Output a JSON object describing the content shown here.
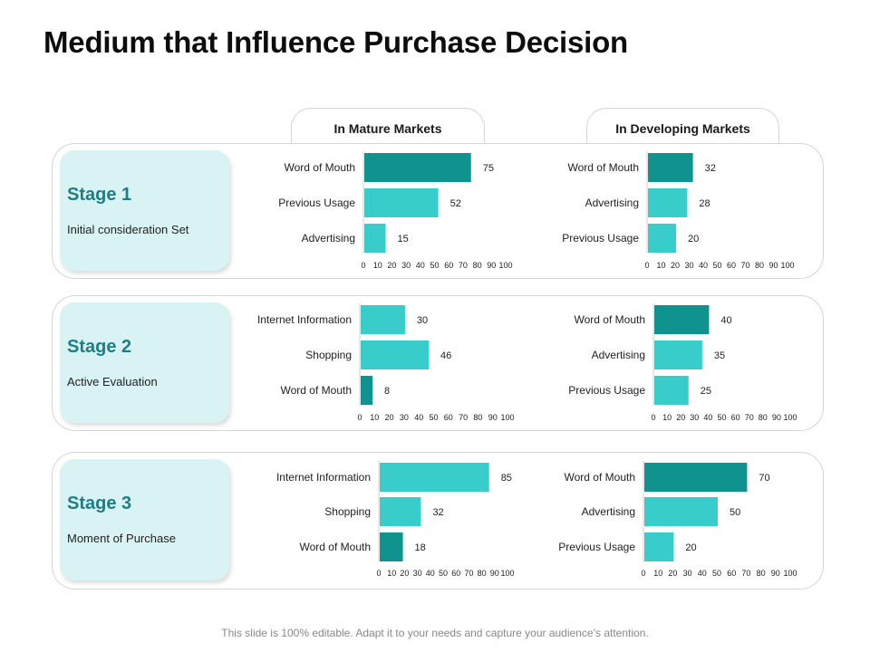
{
  "title": "Medium that Influence Purchase Decision",
  "markets": [
    "In Mature Markets",
    "In Developing Markets"
  ],
  "stages": [
    {
      "title": "Stage 1",
      "subtitle": "Initial consideration Set"
    },
    {
      "title": "Stage 2",
      "subtitle": "Active Evaluation"
    },
    {
      "title": "Stage 3",
      "subtitle": "Moment of Purchase"
    }
  ],
  "footer": "This slide is 100% editable. Adapt it to your needs and capture your audience’s attention.",
  "colors": {
    "dark": "#10928f",
    "light": "#38cdcb",
    "stage_text": "#1a7f87"
  },
  "chart_data": [
    {
      "type": "bar",
      "orientation": "horizontal",
      "stage": "Stage 1",
      "market": "In Mature Markets",
      "categories": [
        "Word of Mouth",
        "Previous Usage",
        "Advertising"
      ],
      "values": [
        75,
        52,
        15
      ],
      "highlight": "Word of Mouth",
      "xlim": [
        0,
        100
      ],
      "xticks": [
        "0",
        "10",
        "20",
        "30",
        "40",
        "50",
        "60",
        "70",
        "80",
        "90",
        "100"
      ]
    },
    {
      "type": "bar",
      "orientation": "horizontal",
      "stage": "Stage 1",
      "market": "In Developing Markets",
      "categories": [
        "Word of Mouth",
        "Advertising",
        "Previous Usage"
      ],
      "values": [
        32,
        28,
        20
      ],
      "highlight": "Word of Mouth",
      "xlim": [
        0,
        100
      ],
      "xticks": [
        "0",
        "10",
        "20",
        "30",
        "40",
        "50",
        "60",
        "70",
        "80",
        "90",
        "100"
      ]
    },
    {
      "type": "bar",
      "orientation": "horizontal",
      "stage": "Stage 2",
      "market": "In Mature Markets",
      "categories": [
        "Internet Information",
        "Shopping",
        "Word of Mouth"
      ],
      "values": [
        30,
        46,
        8
      ],
      "highlight": "Word of Mouth",
      "xlim": [
        0,
        100
      ],
      "xticks": [
        "0",
        "10",
        "20",
        "30",
        "40",
        "50",
        "60",
        "70",
        "80",
        "90",
        "100"
      ]
    },
    {
      "type": "bar",
      "orientation": "horizontal",
      "stage": "Stage 2",
      "market": "In Developing Markets",
      "categories": [
        "Word of Mouth",
        "Advertising",
        "Previous Usage"
      ],
      "values": [
        40,
        35,
        25
      ],
      "highlight": "Word of Mouth",
      "xlim": [
        0,
        100
      ],
      "xticks": [
        "0",
        "10",
        "20",
        "30",
        "40",
        "50",
        "60",
        "70",
        "80",
        "90",
        "100"
      ]
    },
    {
      "type": "bar",
      "orientation": "horizontal",
      "stage": "Stage 3",
      "market": "In Mature Markets",
      "categories": [
        "Internet Information",
        "Shopping",
        "Word of Mouth"
      ],
      "values": [
        85,
        32,
        18
      ],
      "highlight": "Word of Mouth",
      "xlim": [
        0,
        100
      ],
      "xticks": [
        "0",
        "10",
        "20",
        "30",
        "40",
        "50",
        "60",
        "70",
        "80",
        "90",
        "100"
      ]
    },
    {
      "type": "bar",
      "orientation": "horizontal",
      "stage": "Stage 3",
      "market": "In Developing Markets",
      "categories": [
        "Word of Mouth",
        "Advertising",
        "Previous Usage"
      ],
      "values": [
        70,
        50,
        20
      ],
      "highlight": "Word of Mouth",
      "xlim": [
        0,
        100
      ],
      "xticks": [
        "0",
        "10",
        "20",
        "30",
        "40",
        "50",
        "60",
        "70",
        "80",
        "90",
        "100"
      ]
    }
  ]
}
